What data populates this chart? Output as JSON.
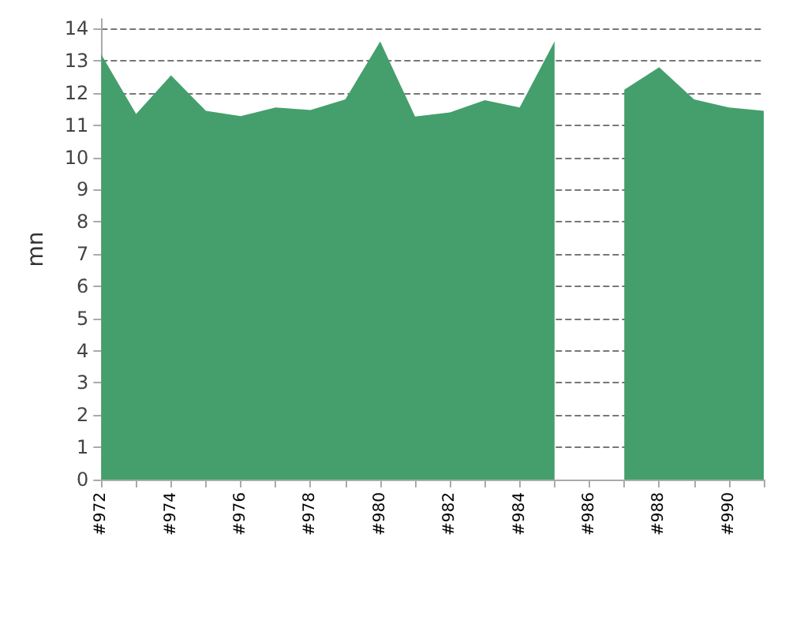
{
  "chart_data": {
    "type": "area",
    "ylabel": "mn",
    "categories": [
      "#972",
      null,
      "#974",
      null,
      "#976",
      null,
      "#978",
      null,
      "#980",
      null,
      "#982",
      null,
      "#984",
      null,
      "#986",
      null,
      "#988",
      null,
      "#990",
      null
    ],
    "values": [
      13.2,
      11.35,
      12.55,
      11.45,
      11.28,
      11.55,
      11.47,
      11.8,
      13.6,
      11.27,
      11.4,
      11.78,
      11.55,
      13.6,
      null,
      12.1,
      12.8,
      11.8,
      11.55,
      11.45
    ],
    "color": "#449f6c",
    "ylim": [
      0,
      14.3
    ],
    "yticks": [
      0,
      1,
      2,
      3,
      4,
      5,
      6,
      7,
      8,
      9,
      10,
      11,
      12,
      13,
      14
    ],
    "grid": "y",
    "line_style": "dashed"
  }
}
